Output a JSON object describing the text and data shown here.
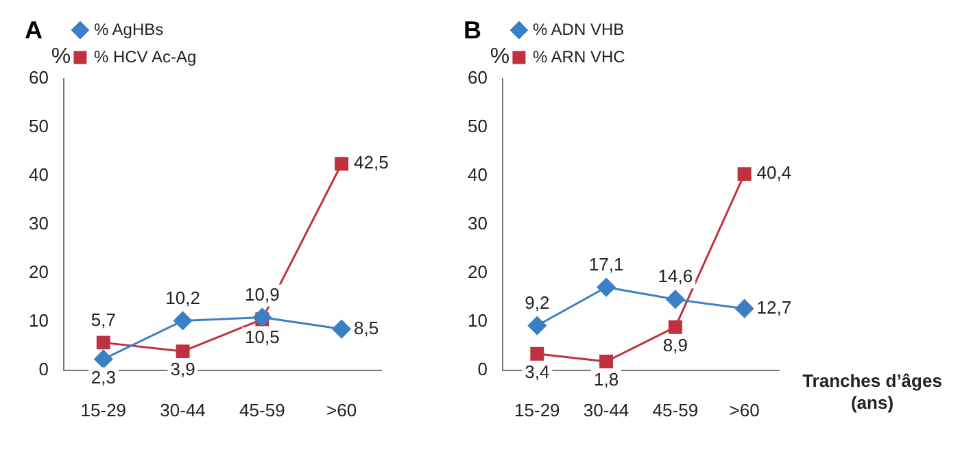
{
  "chart_data": [
    {
      "type": "line",
      "title": "A",
      "ylabel": "%",
      "categories": [
        "15-29",
        "30-44",
        "45-59",
        ">60"
      ],
      "ylim": [
        0,
        60
      ],
      "yticks": [
        0,
        10,
        20,
        30,
        40,
        50,
        60
      ],
      "grid": false,
      "legend": "top left",
      "series": [
        {
          "name": "% AgHBs",
          "color": "#3b7fc4",
          "marker": "diamond",
          "values": [
            2.3,
            10.2,
            10.9,
            8.5
          ],
          "value_labels": [
            "2,3",
            "10,2",
            "10,9",
            "8,5"
          ]
        },
        {
          "name": "% HCV Ac-Ag",
          "color": "#c0313f",
          "marker": "square",
          "values": [
            5.7,
            3.9,
            10.5,
            42.5
          ],
          "value_labels": [
            "5,7",
            "3,9",
            "10,5",
            "42,5"
          ]
        }
      ]
    },
    {
      "type": "line",
      "title": "B",
      "ylabel": "%",
      "xlabel": "Tranches d’âges (ans)",
      "categories": [
        "15-29",
        "30-44",
        "45-59",
        ">60"
      ],
      "ylim": [
        0,
        60
      ],
      "yticks": [
        0,
        10,
        20,
        30,
        40,
        50,
        60
      ],
      "grid": false,
      "legend": "top left",
      "series": [
        {
          "name": "% ADN VHB",
          "color": "#3b7fc4",
          "marker": "diamond",
          "values": [
            9.2,
            17.1,
            14.6,
            12.7
          ],
          "value_labels": [
            "9,2",
            "17,1",
            "14,6",
            "12,7"
          ]
        },
        {
          "name": "% ARN VHC",
          "color": "#c0313f",
          "marker": "square",
          "values": [
            3.4,
            1.8,
            8.9,
            40.4
          ],
          "value_labels": [
            "3,4",
            "1,8",
            "8,9",
            "40,4"
          ]
        }
      ]
    }
  ]
}
